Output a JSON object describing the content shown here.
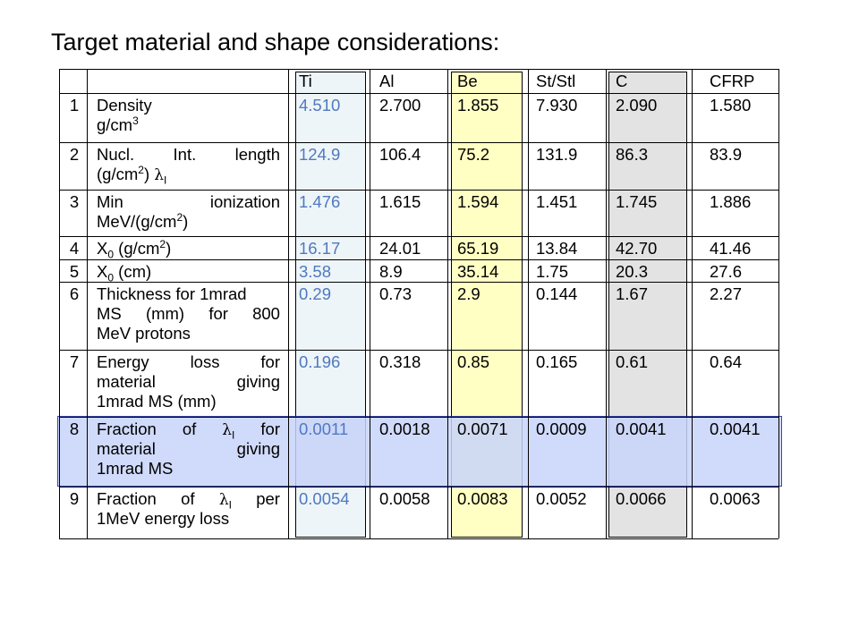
{
  "title": "Target material and shape considerations:",
  "columns": [
    "Ti",
    "Al",
    "Be",
    "St/Stl",
    "C",
    "CFRP"
  ],
  "highlight_colors": {
    "Ti": "#eef5f8",
    "Be": "#ffffc4",
    "C": "#e3e3e3",
    "row8": "#c8d4fa"
  },
  "rows": [
    {
      "n": "1",
      "lines": [
        [
          "Density"
        ],
        [
          "g/cm",
          "3"
        ]
      ],
      "values": [
        "4.510",
        "2.700",
        "1.855",
        "7.930",
        "2.090",
        "1.580"
      ]
    },
    {
      "n": "2",
      "lines": [
        [
          "Nucl.",
          "Int.",
          "length"
        ],
        [
          "(g/cm",
          "2",
          ") ",
          "λ",
          "I"
        ]
      ],
      "values": [
        "124.9",
        "106.4",
        "75.2",
        "131.9",
        "86.3",
        "83.9"
      ]
    },
    {
      "n": "3",
      "lines": [
        [
          "Min",
          "ionization"
        ],
        [
          "MeV/(g/cm",
          "2",
          ")"
        ]
      ],
      "values": [
        "1.476",
        "1.615",
        "1.594",
        "1.451",
        "1.745",
        "1.886"
      ]
    },
    {
      "n": "4",
      "lines": [
        [
          "X",
          "0",
          " (g/cm",
          "2",
          ")"
        ]
      ],
      "values": [
        "16.17",
        "24.01",
        "65.19",
        "13.84",
        "42.70",
        "41.46"
      ]
    },
    {
      "n": "5",
      "lines": [
        [
          "X",
          "0",
          " (cm)"
        ]
      ],
      "values": [
        "3.58",
        "8.9",
        "35.14",
        "1.75",
        "20.3",
        "27.6"
      ]
    },
    {
      "n": "6",
      "lines": [
        [
          "Thickness for 1mrad"
        ],
        [
          "MS",
          "(mm)",
          "for",
          "800"
        ],
        [
          "MeV protons"
        ]
      ],
      "values": [
        "0.29",
        "0.73",
        "2.9",
        "0.144",
        "1.67",
        "2.27"
      ]
    },
    {
      "n": "7",
      "lines": [
        [
          "Energy",
          "loss",
          "for"
        ],
        [
          "material",
          "giving"
        ],
        [
          "1mrad MS (mm)"
        ]
      ],
      "values": [
        "0.196",
        "0.318",
        "0.85",
        "0.165",
        "0.61",
        "0.64"
      ]
    },
    {
      "n": "8",
      "lines": [
        [
          "Fraction",
          "of",
          "λ",
          "I",
          "for"
        ],
        [
          "material",
          "giving"
        ],
        [
          "1mrad MS"
        ]
      ],
      "values": [
        "0.0011",
        "0.0018",
        "0.0071",
        "0.0009",
        "0.0041",
        "0.0041"
      ]
    },
    {
      "n": "9",
      "lines": [
        [
          "Fraction",
          "of",
          "λ",
          "I",
          "per"
        ],
        [
          "1MeV energy loss"
        ]
      ],
      "values": [
        "0.0054",
        "0.0058",
        "0.0083",
        "0.0052",
        "0.0066",
        "0.0063"
      ]
    }
  ]
}
